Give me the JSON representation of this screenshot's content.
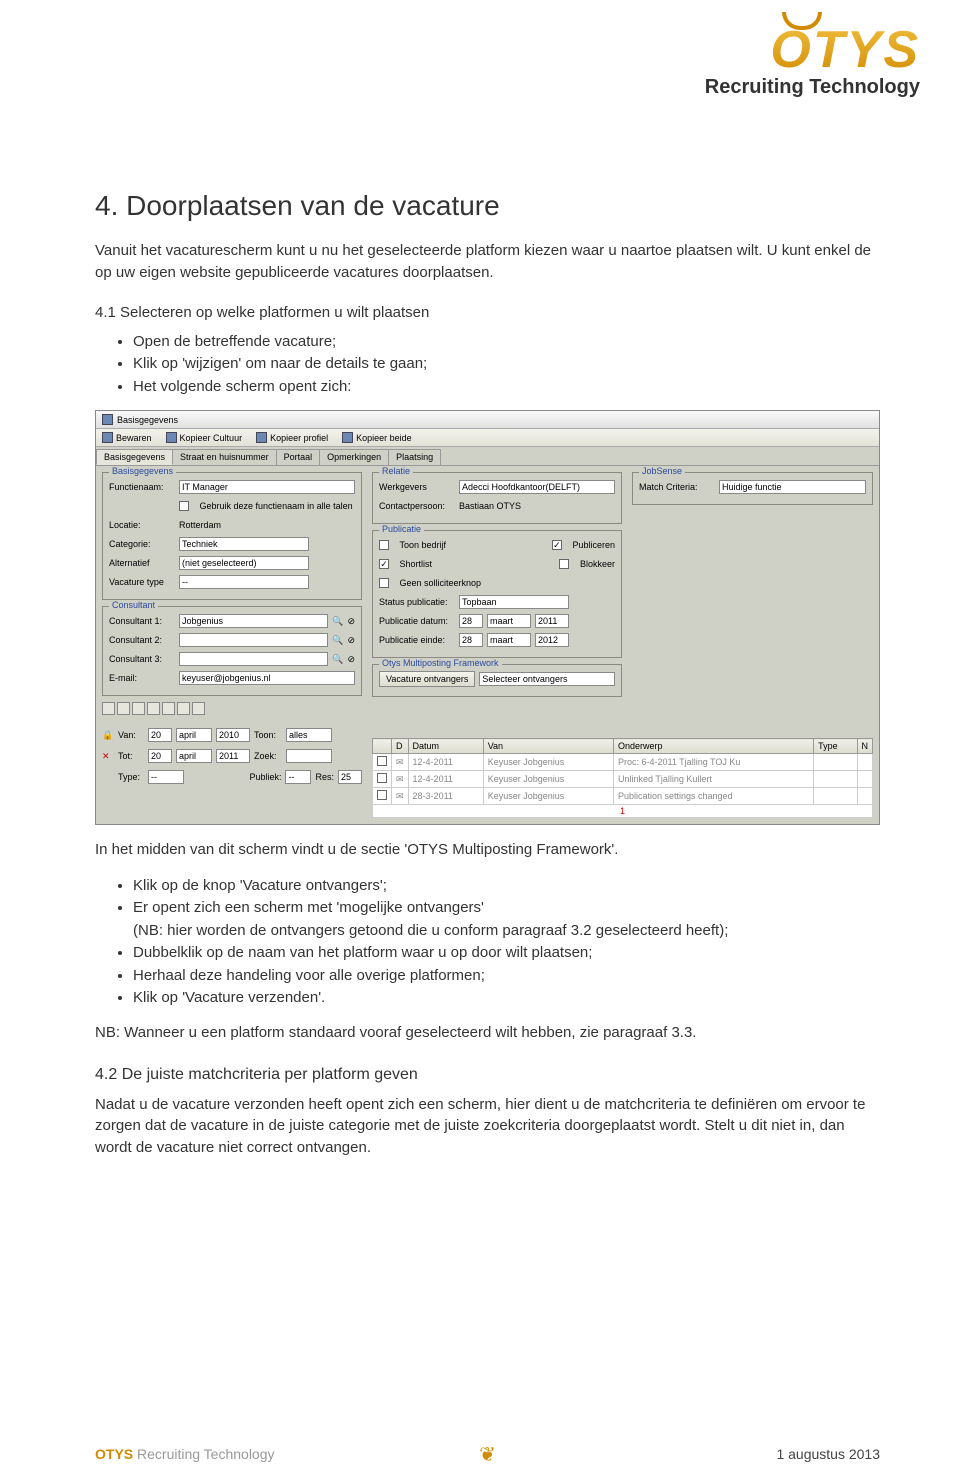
{
  "logo": {
    "brand": "OTYS",
    "tagline": "Recruiting Technology"
  },
  "heading1": "4.  Doorplaatsen van de vacature",
  "intro": "Vanuit het vacaturescherm kunt u nu het geselecteerde platform kiezen waar u naartoe plaatsen wilt. U kunt enkel de op uw eigen website gepubliceerde vacatures doorplaatsen.",
  "heading2": "4.1 Selecteren op welke platformen u wilt plaatsen",
  "list1": [
    "Open de betreffende vacature;",
    "Klik op 'wijzigen' om naar de details te gaan;",
    "Het volgende scherm opent zich:"
  ],
  "app": {
    "title": "Basisgegevens",
    "toolbar": [
      "Bewaren",
      "Kopieer Cultuur",
      "Kopieer profiel",
      "Kopieer beide"
    ],
    "tabs": [
      "Basisgegevens",
      "Straat en huisnummer",
      "Portaal",
      "Opmerkingen",
      "Plaatsing"
    ],
    "active_tab": 0,
    "left": {
      "legend": "Basisgegevens",
      "functienaam_label": "Functienaam:",
      "functienaam": "IT Manager",
      "check_label": "Gebruik deze functienaam in alle talen",
      "locatie_label": "Locatie:",
      "locatie": "Rotterdam",
      "categorie_label": "Categorie:",
      "categorie": "Techniek",
      "alternatief_label": "Alternatief",
      "alternatief": "(niet geselecteerd)",
      "vactype_label": "Vacature type",
      "vactype": "--"
    },
    "consultant": {
      "legend": "Consultant",
      "c1_label": "Consultant 1:",
      "c1": "Jobgenius",
      "c2_label": "Consultant 2:",
      "c2": "",
      "c3_label": "Consultant 3:",
      "c3": "",
      "email_label": "E-mail:",
      "email": "keyuser@jobgenius.nl"
    },
    "relatie": {
      "legend": "Relatie",
      "werkgevers_label": "Werkgevers",
      "werkgevers": "Adecci Hoofdkantoor(DELFT)",
      "contact_label": "Contactpersoon:",
      "contact": "Bastiaan OTYS"
    },
    "publicatie": {
      "legend": "Publicatie",
      "toon_label": "Toon bedrijf",
      "publiceren_label": "Publiceren",
      "shortlist_label": "Shortlist",
      "blokkeer_label": "Blokkeer",
      "geen_label": "Geen solliciteerknop",
      "status_label": "Status publicatie:",
      "status": "Topbaan",
      "pdatum_label": "Publicatie datum:",
      "pdatum_d": "28",
      "pdatum_m": "maart",
      "pdatum_y": "2011",
      "peinde_label": "Publicatie einde:",
      "peinde_d": "28",
      "peinde_m": "maart",
      "peinde_y": "2012"
    },
    "multiposting": {
      "legend": "Otys Multiposting Framework",
      "btn": "Vacature ontvangers",
      "sel": "Selecteer ontvangers"
    },
    "jobsense": {
      "legend": "JobSense",
      "match_label": "Match Criteria:",
      "match": "Huidige functie"
    },
    "bottom": {
      "van_label": "Van:",
      "van_d": "20",
      "van_m": "april",
      "van_y": "2010",
      "toon_label": "Toon:",
      "toon": "alles",
      "tot_label": "Tot:",
      "tot_d": "20",
      "tot_m": "april",
      "tot_y": "2011",
      "zoek_label": "Zoek:",
      "type_label": "Type:",
      "type": "--",
      "publiek_label": "Publiek:",
      "publiek": "--",
      "res_label": "Res:",
      "res": "25"
    },
    "table": {
      "headers": [
        "",
        "D",
        "Datum",
        "Van",
        "Onderwerp",
        "Type",
        "N"
      ],
      "rows": [
        [
          "",
          "",
          "12-4-2011",
          "Keyuser Jobgenius",
          "Proc: 6-4-2011 Tjalling TOJ Ku",
          "",
          ""
        ],
        [
          "",
          "",
          "12-4-2011",
          "Keyuser Jobgenius",
          "Unlinked Tjalling Kullert",
          "",
          ""
        ],
        [
          "",
          "",
          "28-3-2011",
          "Keyuser Jobgenius",
          "Publication settings changed",
          "",
          ""
        ]
      ],
      "footer": "1"
    }
  },
  "afterscreen": "In het midden van dit scherm vindt u de sectie 'OTYS Multiposting Framework'.",
  "list2_item1": "Klik op de knop 'Vacature ontvangers';",
  "list2_item2": "Er opent zich een scherm met 'mogelijke ontvangers'",
  "list2_item2_sub": "(NB: hier worden de ontvangers getoond die u conform paragraaf 3.2 geselecteerd heeft);",
  "list2_item3": "Dubbelklik op de naam van het platform waar u op door wilt plaatsen;",
  "list2_item4": "Herhaal deze handeling voor alle overige platformen;",
  "list2_item5": "Klik op 'Vacature verzenden'.",
  "nb": "NB: Wanneer u een platform standaard vooraf geselecteerd wilt hebben, zie paragraaf 3.3.",
  "heading3": "4.2 De juiste matchcriteria per platform geven",
  "para3": "Nadat u de vacature verzonden heeft opent zich een scherm, hier dient u de matchcriteria te definiëren om ervoor te zorgen dat de vacature in de juiste categorie met de juiste zoekcriteria doorgeplaatst wordt. Stelt u dit niet in, dan wordt de vacature niet correct ontvangen.",
  "footer": {
    "brand_o": "OTYS",
    "brand_rest": " Recruiting Technology",
    "date": "1 augustus 2013"
  }
}
